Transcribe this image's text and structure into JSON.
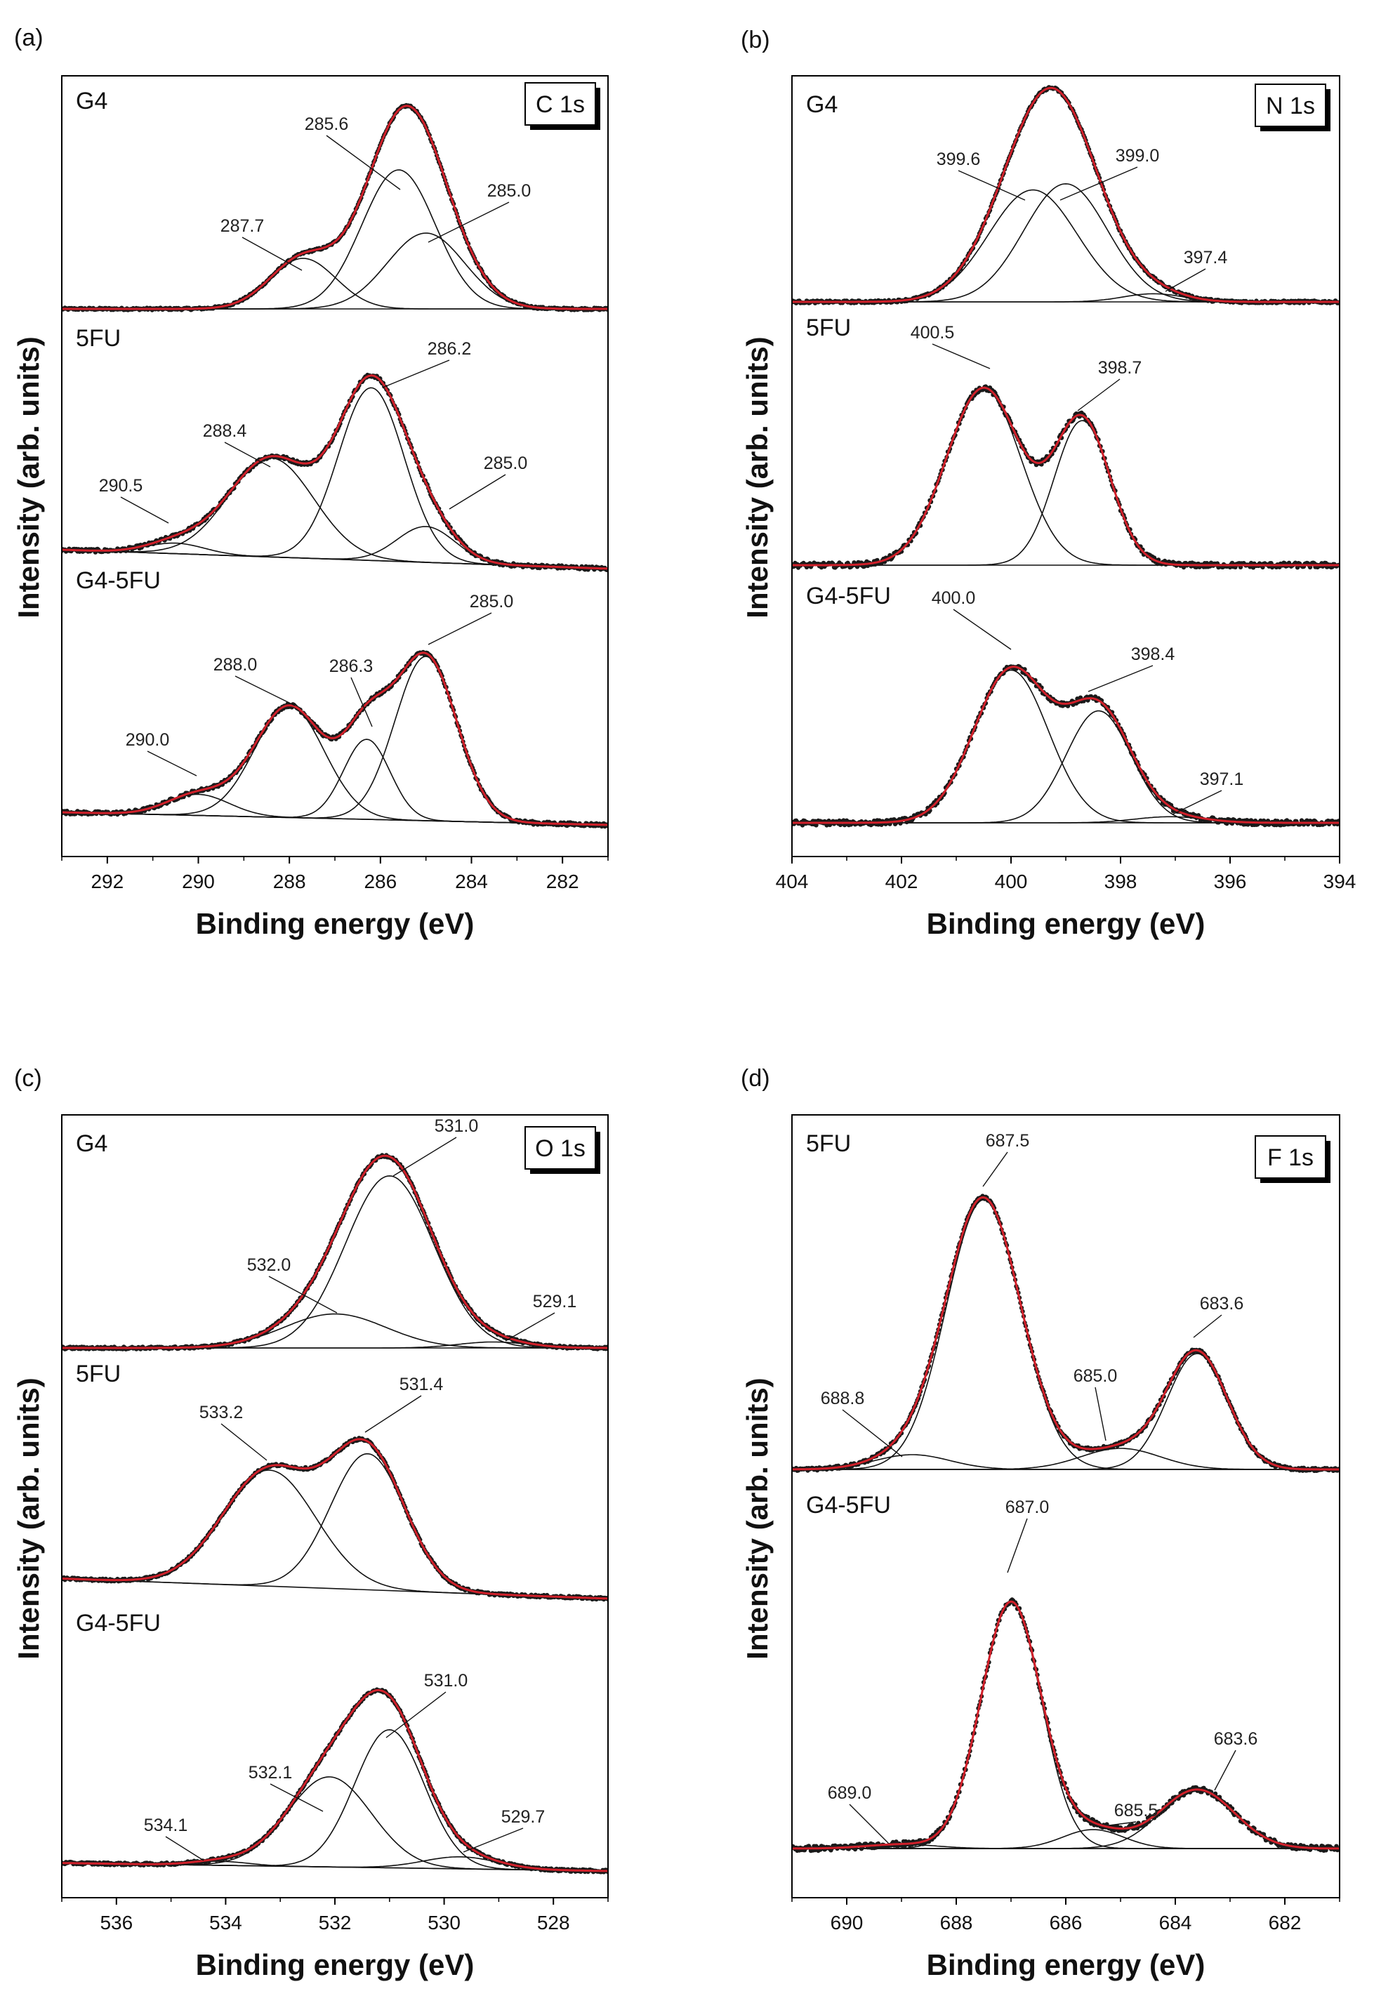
{
  "figure": {
    "colors": {
      "envelope": "#d0202a",
      "data_points": "#1a1a1a",
      "components": "#111111",
      "axis": "#000000"
    }
  },
  "chart_data": [
    {
      "type": "line",
      "panel": "(a)",
      "region": "C 1s",
      "xlabel": "Binding energy (eV)",
      "ylabel": "Intensity (arb. units)",
      "xlim": [
        293,
        281
      ],
      "x_reversed": true,
      "xticks": [
        292,
        290,
        288,
        286,
        284,
        282
      ],
      "stacks": [
        {
          "sample": "G4",
          "baseline": [
            0.0,
            0.0
          ],
          "noise": 0.005,
          "components": [
            {
              "center": 287.7,
              "label": "287.7",
              "amp": 0.24,
              "fwhm": 1.7
            },
            {
              "center": 285.6,
              "label": "285.6",
              "amp": 0.66,
              "fwhm": 1.9
            },
            {
              "center": 285.0,
              "label": "285.0",
              "amp": 0.36,
              "fwhm": 2.0
            }
          ]
        },
        {
          "sample": "5FU",
          "baseline": [
            0.09,
            0.0
          ],
          "noise": 0.008,
          "components": [
            {
              "center": 290.5,
              "label": "290.5",
              "amp": 0.05,
              "fwhm": 1.5
            },
            {
              "center": 288.4,
              "label": "288.4",
              "amp": 0.47,
              "fwhm": 2.2
            },
            {
              "center": 286.2,
              "label": "286.2",
              "amp": 0.82,
              "fwhm": 1.7
            },
            {
              "center": 285.0,
              "label": "285.0",
              "amp": 0.17,
              "fwhm": 1.5
            }
          ]
        },
        {
          "sample": "G4-5FU",
          "baseline": [
            0.06,
            0.0
          ],
          "noise": 0.008,
          "components": [
            {
              "center": 290.0,
              "label": "290.0",
              "amp": 0.1,
              "fwhm": 1.6
            },
            {
              "center": 288.0,
              "label": "288.0",
              "amp": 0.53,
              "fwhm": 1.8
            },
            {
              "center": 286.3,
              "label": "286.3",
              "amp": 0.38,
              "fwhm": 1.2
            },
            {
              "center": 285.0,
              "label": "285.0",
              "amp": 0.78,
              "fwhm": 1.6
            }
          ]
        }
      ]
    },
    {
      "type": "line",
      "panel": "(b)",
      "region": "N 1s",
      "xlabel": "Binding energy (eV)",
      "ylabel": "Intensity (arb. units)",
      "xlim": [
        404,
        394
      ],
      "x_reversed": true,
      "xticks": [
        404,
        402,
        400,
        398,
        396,
        394
      ],
      "stacks": [
        {
          "sample": "G4",
          "baseline": [
            0.0,
            0.0
          ],
          "noise": 0.006,
          "components": [
            {
              "center": 399.6,
              "label": "399.6",
              "amp": 0.55,
              "fwhm": 1.9
            },
            {
              "center": 399.0,
              "label": "399.0",
              "amp": 0.58,
              "fwhm": 1.8
            },
            {
              "center": 397.4,
              "label": "397.4",
              "amp": 0.04,
              "fwhm": 1.3
            }
          ]
        },
        {
          "sample": "5FU",
          "baseline": [
            0.0,
            0.0
          ],
          "noise": 0.012,
          "components": [
            {
              "center": 400.5,
              "label": "400.5",
              "amp": 0.87,
              "fwhm": 1.6
            },
            {
              "center": 398.7,
              "label": "398.7",
              "amp": 0.71,
              "fwhm": 1.2
            }
          ]
        },
        {
          "sample": "G4-5FU",
          "baseline": [
            0.0,
            0.0
          ],
          "noise": 0.012,
          "components": [
            {
              "center": 400.0,
              "label": "400.0",
              "amp": 0.75,
              "fwhm": 1.6
            },
            {
              "center": 398.4,
              "label": "398.4",
              "amp": 0.55,
              "fwhm": 1.4
            },
            {
              "center": 397.1,
              "label": "397.1",
              "amp": 0.03,
              "fwhm": 1.5
            }
          ]
        }
      ]
    },
    {
      "type": "line",
      "panel": "(c)",
      "region": "O 1s",
      "xlabel": "Binding energy (eV)",
      "ylabel": "Intensity (arb. units)",
      "xlim": [
        537,
        527
      ],
      "x_reversed": true,
      "xticks": [
        536,
        534,
        532,
        530,
        528
      ],
      "stacks": [
        {
          "sample": "G4",
          "baseline": [
            0.0,
            0.0
          ],
          "noise": 0.006,
          "components": [
            {
              "center": 532.0,
              "label": "532.0",
              "amp": 0.17,
              "fwhm": 2.2
            },
            {
              "center": 531.0,
              "label": "531.0",
              "amp": 0.86,
              "fwhm": 1.9
            },
            {
              "center": 529.1,
              "label": "529.1",
              "amp": 0.03,
              "fwhm": 1.5
            }
          ]
        },
        {
          "sample": "5FU",
          "baseline": [
            0.1,
            0.0
          ],
          "noise": 0.006,
          "components": [
            {
              "center": 533.2,
              "label": "533.2",
              "amp": 0.58,
              "fwhm": 2.0
            },
            {
              "center": 531.4,
              "label": "531.4",
              "amp": 0.68,
              "fwhm": 1.6
            }
          ]
        },
        {
          "sample": "G4-5FU",
          "baseline": [
            0.04,
            0.0
          ],
          "noise": 0.006,
          "components": [
            {
              "center": 534.1,
              "label": "534.1",
              "amp": 0.02,
              "fwhm": 1.2
            },
            {
              "center": 532.1,
              "label": "532.1",
              "amp": 0.45,
              "fwhm": 1.8
            },
            {
              "center": 531.0,
              "label": "531.0",
              "amp": 0.69,
              "fwhm": 1.5
            },
            {
              "center": 529.7,
              "label": "529.7",
              "amp": 0.06,
              "fwhm": 1.6
            }
          ]
        }
      ]
    },
    {
      "type": "line",
      "panel": "(d)",
      "region": "F 1s",
      "xlabel": "Binding energy (eV)",
      "ylabel": "Intensity (arb. units)",
      "xlim": [
        691,
        681
      ],
      "x_reversed": true,
      "xticks": [
        690,
        688,
        686,
        684,
        682
      ],
      "stacks": [
        {
          "sample": "5FU",
          "baseline": [
            0.0,
            0.0
          ],
          "noise": 0.007,
          "components": [
            {
              "center": 688.8,
              "label": "688.8",
              "amp": 0.07,
              "fwhm": 1.6
            },
            {
              "center": 687.5,
              "label": "687.5",
              "amp": 1.28,
              "fwhm": 1.6
            },
            {
              "center": 685.0,
              "label": "685.0",
              "amp": 0.1,
              "fwhm": 1.7
            },
            {
              "center": 683.6,
              "label": "683.6",
              "amp": 0.55,
              "fwhm": 1.3
            }
          ]
        },
        {
          "sample": "G4-5FU",
          "baseline": [
            0.0,
            0.0
          ],
          "noise": 0.012,
          "components": [
            {
              "center": 689.0,
              "label": "689.0",
              "amp": 0.02,
              "fwhm": 1.5
            },
            {
              "center": 687.0,
              "label": "687.0",
              "amp": 1.17,
              "fwhm": 1.3
            },
            {
              "center": 685.5,
              "label": "685.5",
              "amp": 0.09,
              "fwhm": 1.3
            },
            {
              "center": 683.6,
              "label": "683.6",
              "amp": 0.28,
              "fwhm": 1.6
            }
          ]
        }
      ]
    }
  ]
}
